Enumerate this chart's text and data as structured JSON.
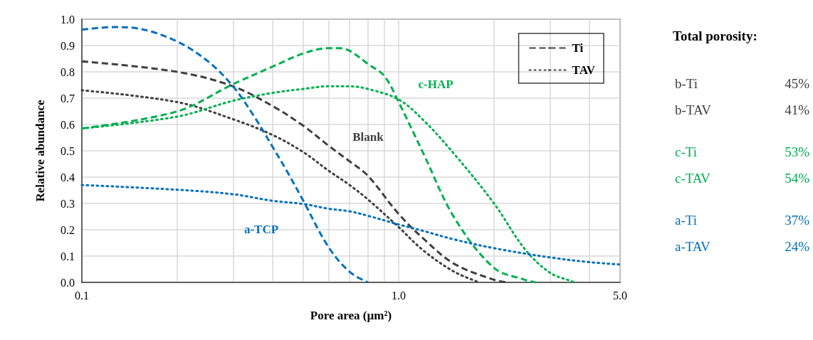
{
  "chart_data": {
    "type": "line",
    "xlabel": "Pore area (µm²)",
    "ylabel": "Relative abundance",
    "log": "x",
    "grid": true,
    "legend": "top right",
    "xlim": [
      0.1,
      5
    ],
    "xticks": [
      0.1,
      {
        "value": 0.2,
        "label": null
      },
      {
        "value": 0.3,
        "label": null
      },
      {
        "value": 0.4,
        "label": null
      },
      {
        "value": 0.5,
        "label": null
      },
      {
        "value": 0.6,
        "label": null
      },
      {
        "value": 0.7,
        "label": null
      },
      {
        "value": 0.8,
        "label": null
      },
      {
        "value": 0.9,
        "label": null
      },
      {
        "value": 1,
        "label": "1.0"
      },
      {
        "value": 2,
        "label": null
      },
      {
        "value": 3,
        "label": null
      },
      {
        "value": 4,
        "label": null
      },
      {
        "value": 5,
        "label": "5.0"
      }
    ],
    "ylim": [
      0,
      1
    ],
    "yticks": [
      {
        "value": 0,
        "label": "0.0"
      },
      0.1,
      0.2,
      0.3,
      0.4,
      0.5,
      0.6,
      0.7,
      0.8,
      0.9,
      {
        "value": 1,
        "label": "1.0"
      }
    ],
    "series": [
      {
        "name": "Ti",
        "color": "#404040",
        "line_style": "dashed",
        "x": [
          0.1,
          0.2,
          0.3,
          0.4,
          0.5,
          0.6,
          0.7,
          0.8,
          1.0,
          1.2,
          1.5,
          2,
          2.2
        ],
        "values": [
          0.84,
          0.8,
          0.745,
          0.67,
          0.595,
          0.52,
          0.46,
          0.405,
          0.26,
          0.165,
          0.07,
          0.01,
          0
        ]
      },
      {
        "name": "TAV",
        "color": "#404040",
        "line_style": "dotted",
        "x": [
          0.1,
          0.2,
          0.3,
          0.4,
          0.5,
          0.6,
          0.7,
          0.8,
          1.0,
          1.2,
          1.5,
          1.8
        ],
        "values": [
          0.73,
          0.685,
          0.62,
          0.56,
          0.495,
          0.425,
          0.37,
          0.315,
          0.21,
          0.12,
          0.04,
          0
        ]
      },
      {
        "color": "#00b050",
        "line_style": "dashed",
        "x": [
          0.1,
          0.2,
          0.3,
          0.4,
          0.5,
          0.6,
          0.65,
          0.7,
          0.8,
          0.9,
          1.0,
          1.2,
          1.5,
          2,
          2.5,
          2.7
        ],
        "values": [
          0.585,
          0.65,
          0.753,
          0.82,
          0.87,
          0.89,
          0.89,
          0.88,
          0.83,
          0.785,
          0.685,
          0.487,
          0.245,
          0.055,
          0.01,
          0
        ]
      },
      {
        "color": "#00b050",
        "line_style": "dotted",
        "x": [
          0.1,
          0.2,
          0.3,
          0.4,
          0.5,
          0.6,
          0.7,
          0.8,
          1.0,
          1.2,
          1.5,
          2,
          2.5,
          3,
          3.5,
          3.6
        ],
        "values": [
          0.585,
          0.63,
          0.69,
          0.72,
          0.735,
          0.745,
          0.745,
          0.735,
          0.695,
          0.615,
          0.487,
          0.3,
          0.127,
          0.037,
          0.005,
          0
        ]
      },
      {
        "color": "#0070c0",
        "line_style": "dashed",
        "x": [
          0.1,
          0.126,
          0.15,
          0.2,
          0.25,
          0.3,
          0.35,
          0.4,
          0.45,
          0.5,
          0.6,
          0.7,
          0.8
        ],
        "values": [
          0.96,
          0.97,
          0.965,
          0.915,
          0.84,
          0.745,
          0.63,
          0.515,
          0.41,
          0.31,
          0.135,
          0.04,
          0
        ]
      },
      {
        "color": "#0070c0",
        "line_style": "dotted",
        "x": [
          0.1,
          0.2,
          0.3,
          0.4,
          0.5,
          0.6,
          0.7,
          0.8,
          1.0,
          1.2,
          1.5,
          2,
          3,
          4,
          5
        ],
        "values": [
          0.37,
          0.352,
          0.335,
          0.31,
          0.298,
          0.28,
          0.27,
          0.253,
          0.22,
          0.195,
          0.163,
          0.13,
          0.095,
          0.077,
          0.068
        ]
      }
    ],
    "annotations": [
      "Total porosity:",
      "b-Ti",
      "45%",
      "b-TAV",
      "41%",
      "c-Ti",
      "53%",
      "c-TAV",
      "54%",
      "a-Ti",
      "37%",
      "a-TAV",
      "24%",
      "Blank",
      "c-HAP",
      "a-TCP"
    ]
  }
}
